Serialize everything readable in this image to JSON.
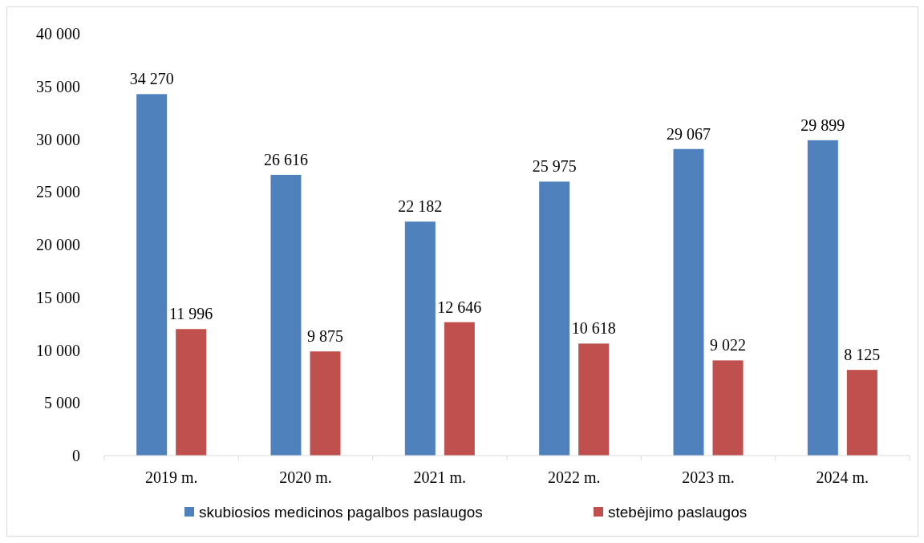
{
  "chart_data": {
    "type": "bar",
    "categories": [
      "2019 m.",
      "2020 m.",
      "2021 m.",
      "2022 m.",
      "2023 m.",
      "2024 m."
    ],
    "series": [
      {
        "name": "skubiosios medicinos pagalbos paslaugos",
        "color": "#4f81bd",
        "values": [
          34270,
          26616,
          22182,
          25975,
          29067,
          29899
        ],
        "value_labels": [
          "34 270",
          "26 616",
          "22 182",
          "25 975",
          "29 067",
          "29 899"
        ]
      },
      {
        "name": "stebėjimo paslaugos",
        "color": "#c0504d",
        "values": [
          11996,
          9875,
          12646,
          10618,
          9022,
          8125
        ],
        "value_labels": [
          "11 996",
          "9 875",
          "12 646",
          "10 618",
          "9 022",
          "8 125"
        ]
      }
    ],
    "ylim": [
      0,
      40000
    ],
    "yticks": [
      0,
      {
        "value": 5000,
        "label": "5 000"
      },
      {
        "value": 10000,
        "label": "10 000"
      },
      {
        "value": 15000,
        "label": "15 000"
      },
      {
        "value": 20000,
        "label": "20 000"
      },
      {
        "value": 25000,
        "label": "25 000"
      },
      {
        "value": 30000,
        "label": "30 000"
      },
      {
        "value": 35000,
        "label": "35 000"
      },
      {
        "value": 40000,
        "label": "40 000"
      }
    ],
    "legend": "bottom"
  }
}
